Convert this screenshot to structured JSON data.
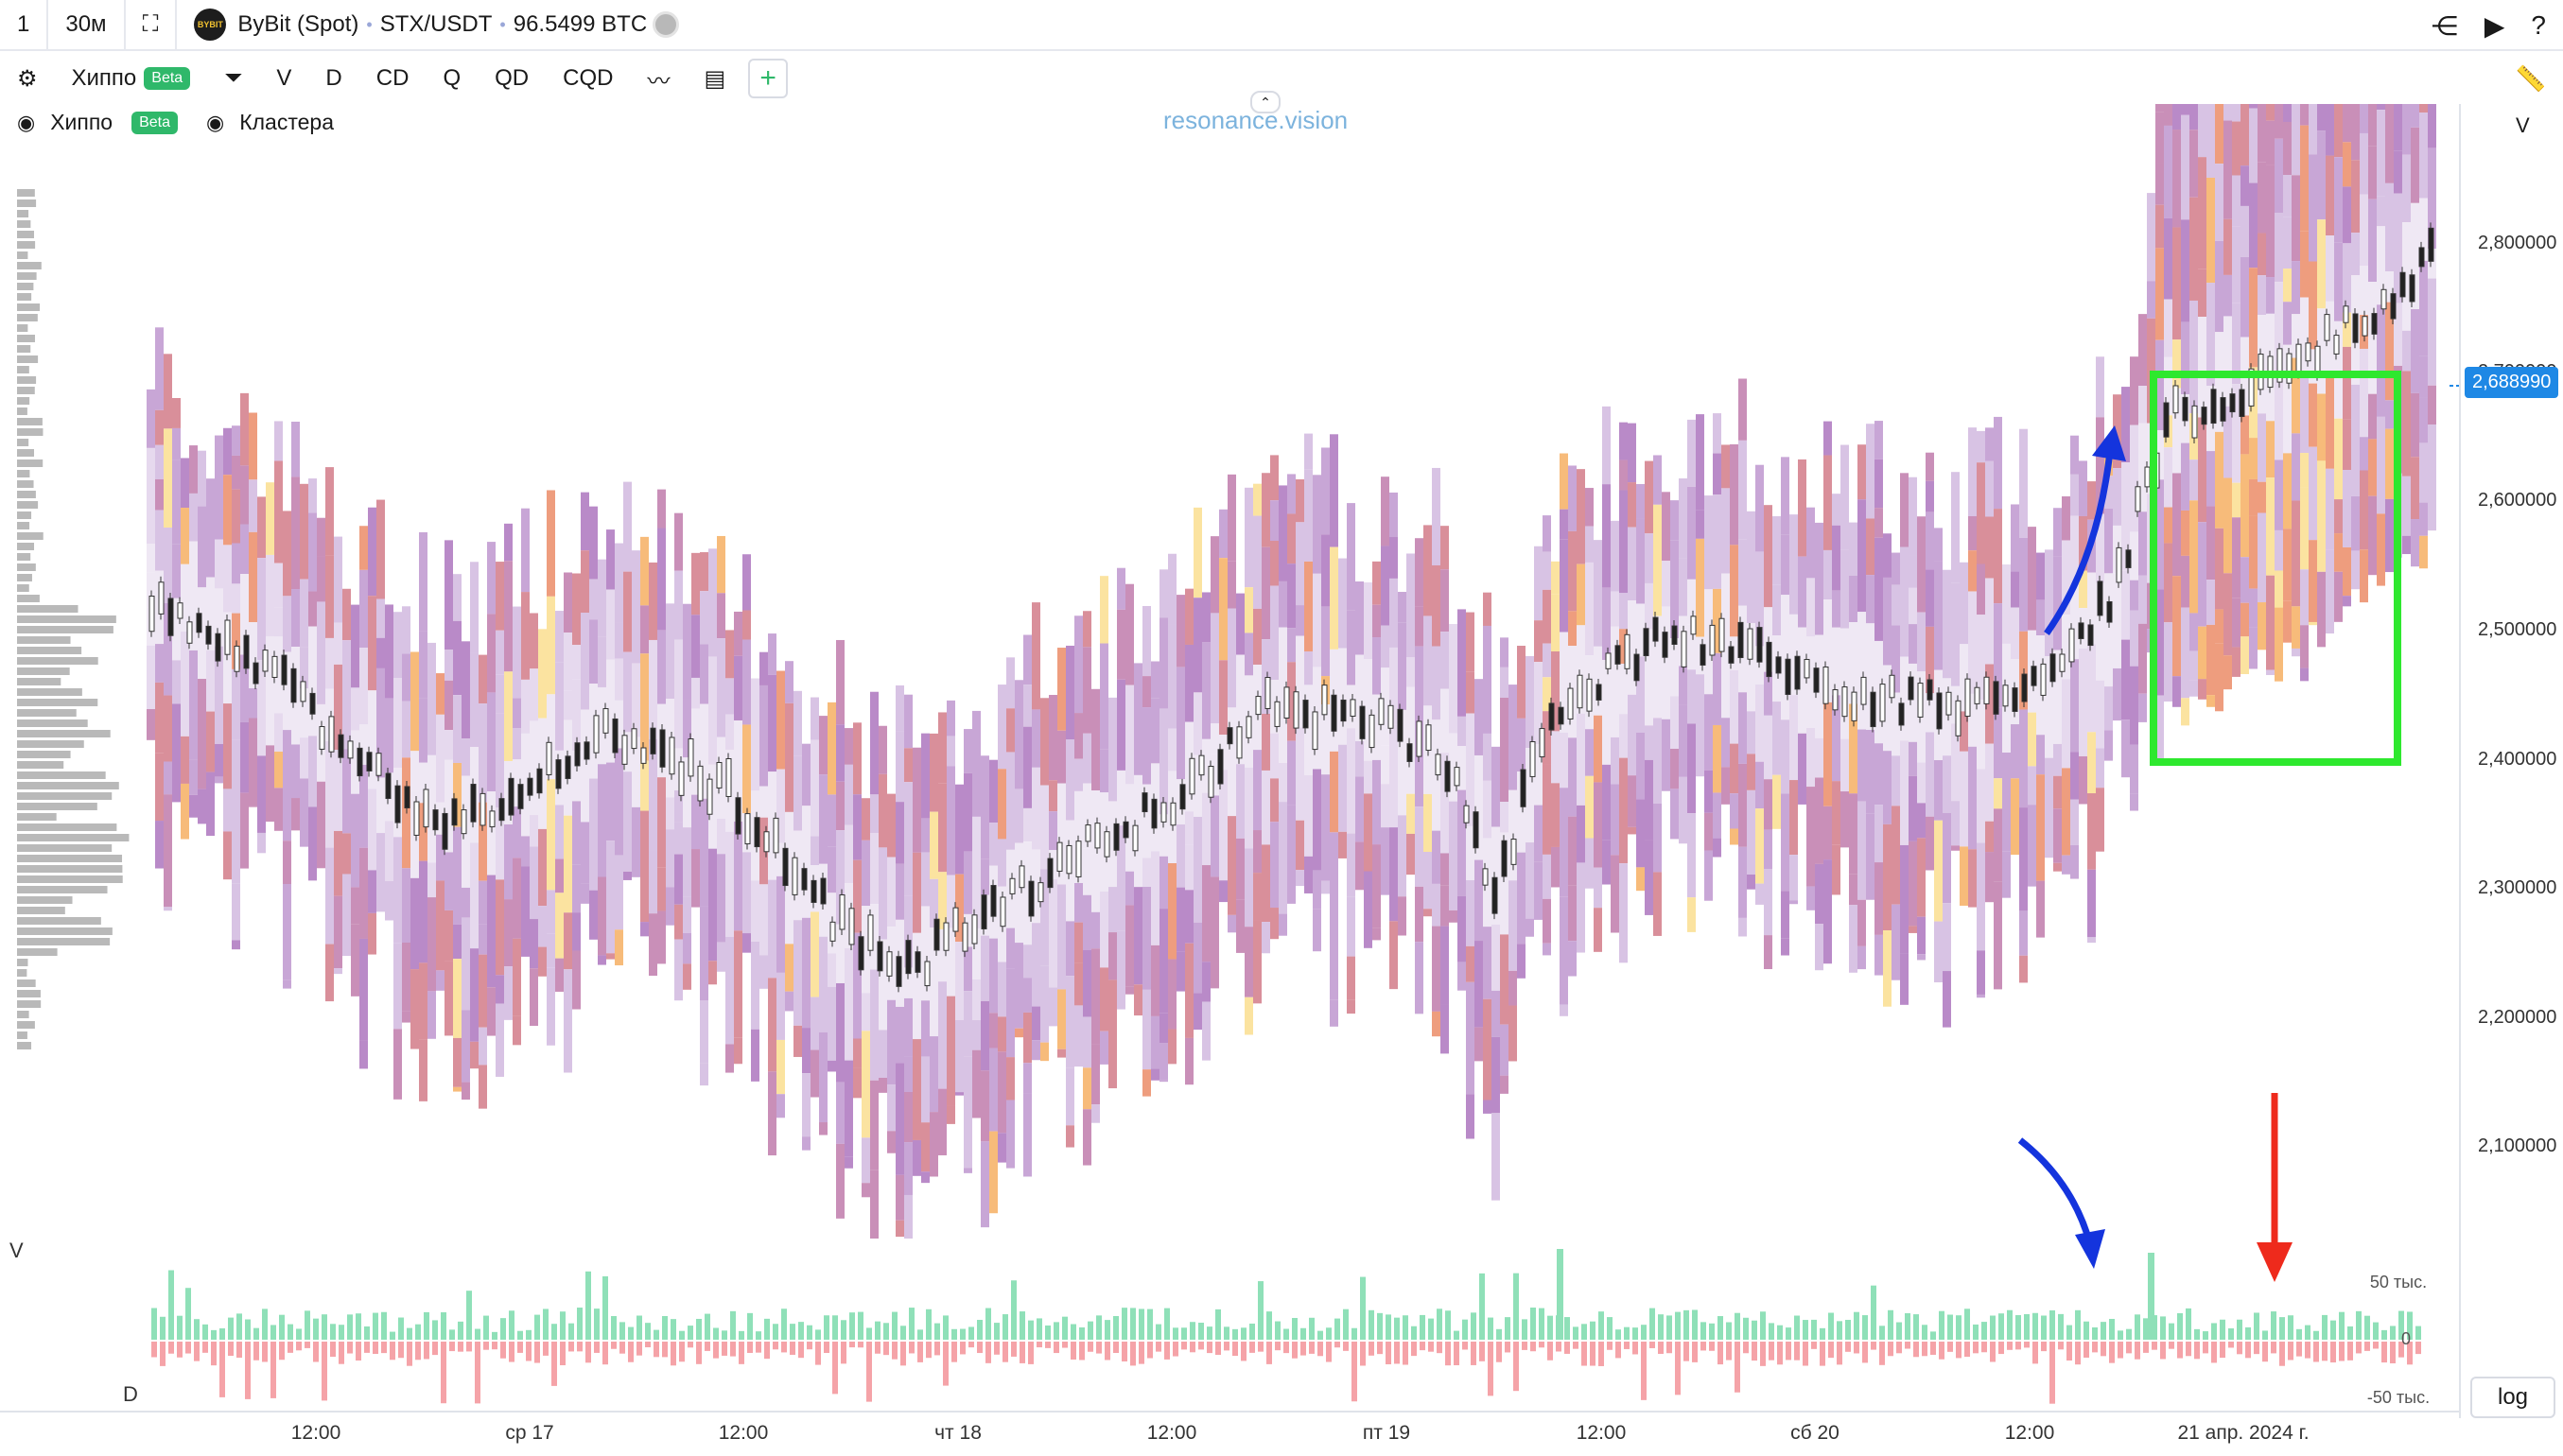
{
  "topbar": {
    "interval_count": "1",
    "timeframe": "30м",
    "exchange_logo": "BYBIT",
    "exchange": "ByBit (Spot)",
    "symbol": "STX/USDT",
    "volume": "96.5499 BTC"
  },
  "toolbar": {
    "indicator_name": "Хиппо",
    "beta": "Beta",
    "items": [
      "V",
      "D",
      "CD",
      "Q",
      "QD",
      "CQD"
    ]
  },
  "legend": {
    "item1": "Хиппо",
    "item1_badge": "Beta",
    "item2": "Кластера"
  },
  "watermark": "resonance.vision",
  "price_axis": {
    "header": "V",
    "labels": [
      "2,800000",
      "2,700000",
      "2,600000",
      "2,500000",
      "2,400000",
      "2,300000",
      "2,200000",
      "2,100000"
    ],
    "current_price": "2,688990"
  },
  "volume_pane": {
    "label_top": "V",
    "label_bottom": "D",
    "ticks": [
      "50 тыс.",
      "0",
      "-50 тыс."
    ]
  },
  "time_axis": {
    "labels": [
      "12:00",
      "ср 17",
      "12:00",
      "чт 18",
      "12:00",
      "пт 19",
      "12:00",
      "сб 20",
      "12:00",
      "21 апр. 2024 г."
    ]
  },
  "log_button": "log",
  "colors": {
    "accent": "#1e88e5",
    "beta": "#2fb86a",
    "highlight_box": "#2ee82e",
    "arrow_blue": "#1434dd",
    "arrow_red": "#ee2a1c",
    "vol_up": "#8fe0b8",
    "vol_down": "#f5a3a8"
  }
}
